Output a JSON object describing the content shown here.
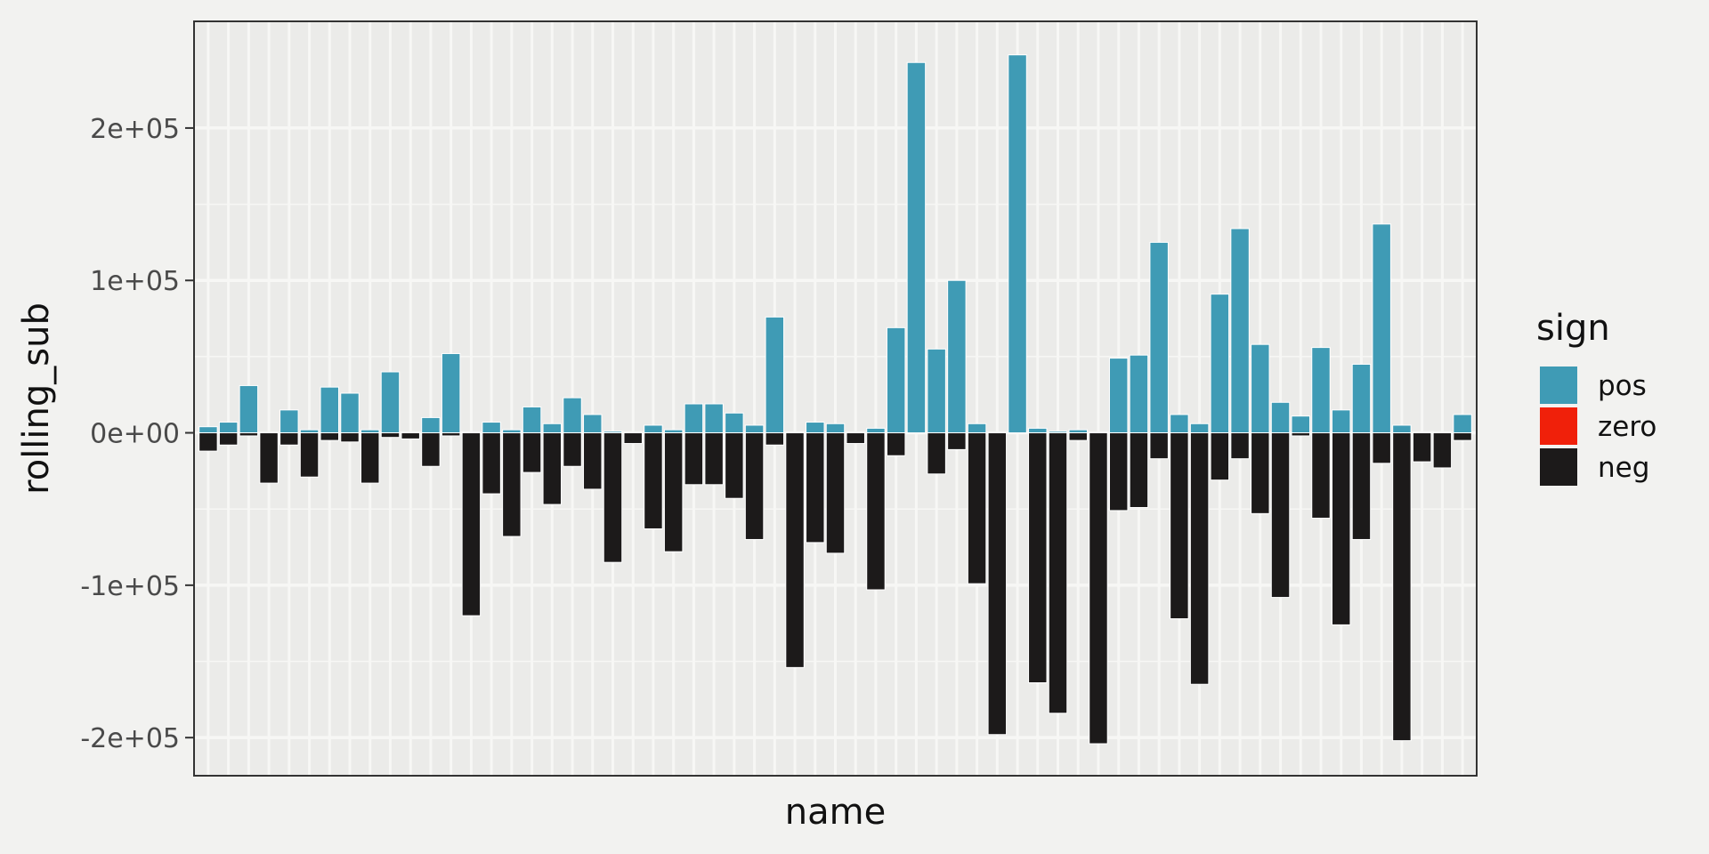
{
  "chart_data": {
    "type": "bar",
    "xlabel": "name",
    "ylabel": "rolling_sub",
    "ylim": [
      -225000,
      270000
    ],
    "yticks": [
      -200000,
      -100000,
      0,
      100000,
      200000
    ],
    "ytick_labels": [
      "-2e+05",
      "-1e+05",
      "0e+00",
      "1e+05",
      "2e+05"
    ],
    "grid": true,
    "legend": {
      "title": "sign",
      "position": "right",
      "entries": [
        {
          "label": "pos",
          "color": "#3f9bb5"
        },
        {
          "label": "zero",
          "color": "#f0200a"
        },
        {
          "label": "neg",
          "color": "#1c1a1a"
        }
      ]
    },
    "series": [
      {
        "name": "pos",
        "color": "#3f9bb5",
        "values": [
          4000,
          7000,
          31000,
          0,
          15000,
          2000,
          30000,
          26000,
          2000,
          40000,
          0,
          10000,
          52000,
          0,
          7000,
          2000,
          17000,
          6000,
          23000,
          12000,
          1000,
          0,
          5000,
          2000,
          19000,
          19000,
          13000,
          5000,
          76000,
          0,
          7000,
          6000,
          0,
          3000,
          69000,
          243000,
          55000,
          100000,
          6000,
          0,
          248000,
          3000,
          1000,
          2000,
          0,
          49000,
          51000,
          125000,
          12000,
          6000,
          91000,
          134000,
          58000,
          20000,
          11000,
          56000,
          15000,
          45000,
          137000,
          5000,
          0,
          0,
          12000
        ]
      },
      {
        "name": "neg",
        "color": "#1c1a1a",
        "values": [
          -12000,
          -8000,
          -2000,
          -33000,
          -8000,
          -29000,
          -5000,
          -6000,
          -33000,
          -3000,
          -4000,
          -22000,
          -2000,
          -120000,
          -40000,
          -68000,
          -26000,
          -47000,
          -22000,
          -37000,
          -85000,
          -7000,
          -63000,
          -78000,
          -34000,
          -34000,
          -43000,
          -70000,
          -8000,
          -154000,
          -72000,
          -79000,
          -7000,
          -103000,
          -15000,
          0,
          -27000,
          -11000,
          -99000,
          -198000,
          0,
          -164000,
          -184000,
          -5000,
          -204000,
          -51000,
          -49000,
          -17000,
          -122000,
          -165000,
          -31000,
          -17000,
          -53000,
          -108000,
          -2000,
          -56000,
          -126000,
          -70000,
          -20000,
          -202000,
          -19000,
          -23000,
          -5000
        ]
      }
    ]
  }
}
